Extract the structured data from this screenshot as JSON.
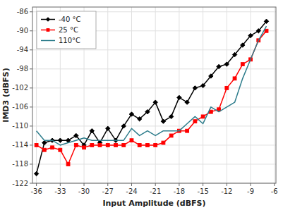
{
  "chart_data": {
    "type": "line",
    "xlabel": "Input Amplitude (dBFS)",
    "ylabel": "IMD3 (dBFS)",
    "xlim": [
      -36.5,
      -5.8
    ],
    "ylim": [
      -122,
      -85
    ],
    "xticks": [
      -36,
      -33,
      -30,
      -27,
      -24,
      -21,
      -18,
      -15,
      -12,
      -9,
      -6
    ],
    "yticks": [
      -86,
      -90,
      -94,
      -98,
      -102,
      -106,
      -110,
      -114,
      -118,
      -122
    ],
    "grid": true,
    "legend": "upper left",
    "x": [
      -36,
      -35,
      -34,
      -33,
      -32,
      -31,
      -30,
      -29,
      -28,
      -27,
      -26,
      -25,
      -24,
      -23,
      -22,
      -21,
      -20,
      -19,
      -18,
      -17,
      -16,
      -15,
      -14,
      -13,
      -12,
      -11,
      -10,
      -9,
      -8,
      -7
    ],
    "series": [
      {
        "name": "-40 °C",
        "color": "#000000",
        "marker": "diamond",
        "values": [
          -120,
          -113.5,
          -113,
          -113,
          -113,
          -112,
          -114,
          -111,
          -113.5,
          -110.5,
          -113,
          -110,
          -107.5,
          -108.5,
          -107,
          -105,
          -109,
          -108,
          -104,
          -105,
          -102,
          -101.5,
          -99.5,
          -97.5,
          -97,
          -95,
          -93,
          -91,
          -90,
          -88
        ]
      },
      {
        "name": "25 °C",
        "color": "#ff0000",
        "marker": "square",
        "values": [
          -114,
          -115,
          -114.5,
          -115,
          -118,
          -114,
          -114.5,
          -114,
          -114,
          -114,
          -114,
          -114,
          -113,
          -114,
          -114,
          -114,
          -113.5,
          -112,
          -111,
          -111,
          -109,
          -108,
          -107,
          -106.5,
          -102,
          -100,
          -97,
          -96,
          -92,
          -90
        ]
      },
      {
        "name": "110°C",
        "color": "#2e7d8c",
        "values": [
          -111,
          -113,
          -113,
          -114,
          -113.5,
          -113,
          -112.5,
          -113,
          -113,
          -113,
          -113,
          -113,
          -110.5,
          -112,
          -111,
          -112,
          -111,
          -111,
          -111,
          -109.5,
          -108,
          -109.5,
          -106,
          -107,
          -106,
          -105,
          -100,
          -96,
          -92,
          -89
        ]
      }
    ]
  }
}
